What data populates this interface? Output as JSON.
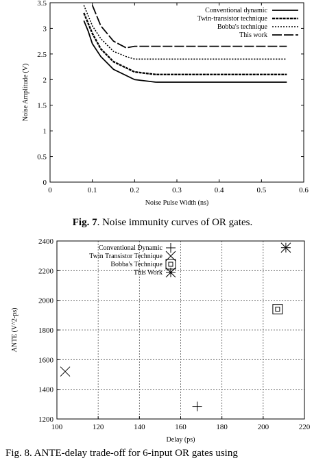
{
  "captions": {
    "fig7_label": "Fig. 7",
    "fig7_text": ". Noise immunity curves of OR gates.",
    "fig8_visible": "Fig. 8. ANTE-delay trade-off for 6-input OR gates using"
  },
  "chart_data": [
    {
      "type": "line",
      "title": "",
      "xlabel": "Noise Pulse Width (ns)",
      "ylabel": "Noise Amplitude (V)",
      "xlim": [
        0,
        0.6
      ],
      "ylim": [
        0,
        3.5
      ],
      "xticks": [
        "0",
        "0.1",
        "0.2",
        "0.3",
        "0.4",
        "0.5",
        "0.6"
      ],
      "yticks": [
        "0",
        "0.5",
        "1",
        "1.5",
        "2",
        "2.5",
        "3",
        "3.5"
      ],
      "legend_position": "top-right",
      "grid": false,
      "series": [
        {
          "name": "Conventional dynamic",
          "style": "solid",
          "x": [
            0.08,
            0.09,
            0.1,
            0.12,
            0.15,
            0.2,
            0.25
          ],
          "y": [
            3.15,
            2.95,
            2.7,
            2.45,
            2.2,
            2.0,
            1.95
          ]
        },
        {
          "name": "Twin-transistor technique",
          "style": "dense-dash",
          "x": [
            0.08,
            0.09,
            0.1,
            0.12,
            0.15,
            0.2,
            0.25,
            0.3,
            0.4,
            0.5,
            0.56
          ],
          "y": [
            3.3,
            3.1,
            2.9,
            2.6,
            2.35,
            2.15,
            2.1,
            2.1,
            2.1,
            2.1,
            2.1
          ]
        },
        {
          "name": "Bobba's technique",
          "style": "dotted",
          "x": [
            0.08,
            0.09,
            0.1,
            0.12,
            0.15,
            0.18,
            0.2,
            0.3,
            0.4,
            0.5,
            0.56
          ],
          "y": [
            3.45,
            3.25,
            3.05,
            2.8,
            2.55,
            2.45,
            2.4,
            2.4,
            2.4,
            2.4,
            2.4
          ]
        },
        {
          "name": "This work",
          "style": "long-dash",
          "x": [
            0.1,
            0.12,
            0.15,
            0.18,
            0.2,
            0.3,
            0.4,
            0.5,
            0.56
          ],
          "y": [
            3.45,
            3.05,
            2.75,
            2.62,
            2.65,
            2.65,
            2.65,
            2.65,
            2.65
          ]
        }
      ],
      "extra_curve_tail": {
        "name": "Conventional dynamic",
        "x": [
          0.25,
          0.3,
          0.4,
          0.5,
          0.56
        ],
        "y": [
          1.95,
          1.95,
          1.95,
          1.95,
          1.95
        ]
      }
    },
    {
      "type": "scatter",
      "title": "",
      "xlabel": "Delay (ps)",
      "ylabel": "ANTE (V^2-ps)",
      "xlim": [
        100,
        220
      ],
      "ylim": [
        1200,
        2400
      ],
      "xticks": [
        "100",
        "120",
        "140",
        "160",
        "180",
        "200",
        "220"
      ],
      "yticks": [
        "1200",
        "1400",
        "1600",
        "1800",
        "2000",
        "2200",
        "2400"
      ],
      "legend_position": "top-left",
      "grid": true,
      "series": [
        {
          "name": "Conventional Dynamic",
          "marker": "plus",
          "x": [
            168
          ],
          "y": [
            1285
          ]
        },
        {
          "name": "Twin Transistor Technique",
          "marker": "cross",
          "x": [
            104
          ],
          "y": [
            1520
          ]
        },
        {
          "name": "Bobba's Technique",
          "marker": "square",
          "x": [
            207
          ],
          "y": [
            1940
          ]
        },
        {
          "name": "This Work",
          "marker": "star",
          "x": [
            211
          ],
          "y": [
            2355
          ]
        }
      ]
    }
  ]
}
